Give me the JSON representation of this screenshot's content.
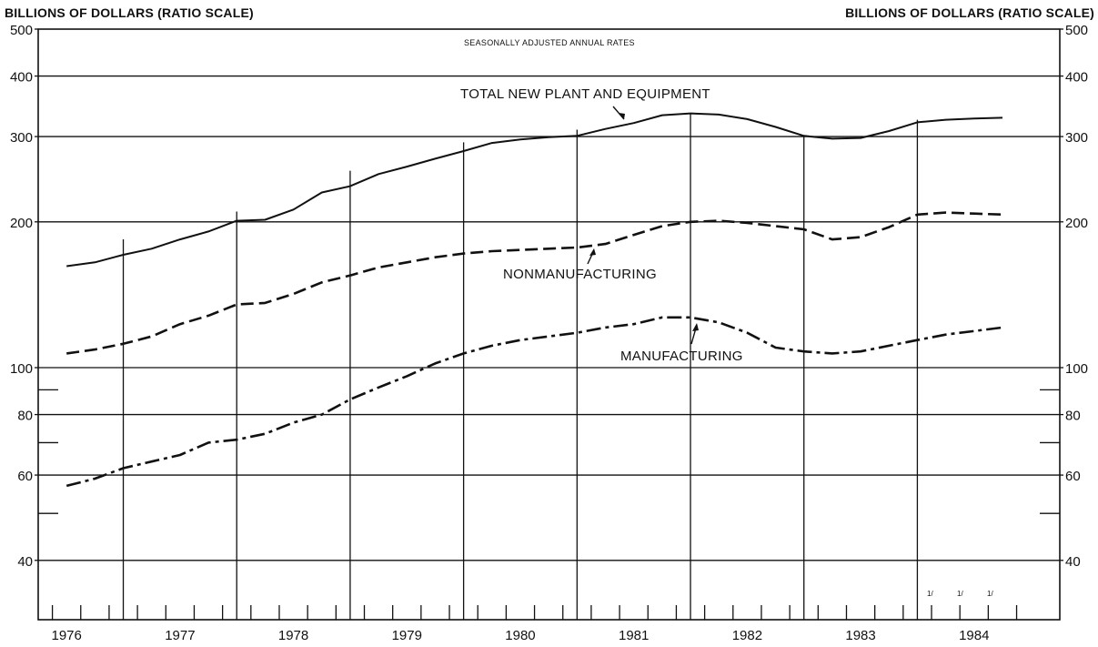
{
  "chart_data": {
    "type": "line",
    "yaxis_left_label": "BILLIONS OF DOLLARS (RATIO SCALE)",
    "yaxis_right_label": "BILLIONS OF DOLLARS (RATIO SCALE)",
    "annotation": "SEASONALLY ADJUSTED ANNUAL RATES",
    "y_scale": "log",
    "ylim": [
      30,
      500
    ],
    "xlim": [
      1975.75,
      1984.5
    ],
    "y_ticks": [
      40,
      60,
      80,
      100,
      200,
      300,
      400,
      500
    ],
    "y_minor_ticks": [
      50,
      70,
      90
    ],
    "x_ticks": [
      "1976",
      "1977",
      "1978",
      "1979",
      "1980",
      "1981",
      "1982",
      "1983",
      "1984"
    ],
    "footnote_marks": [
      "1/",
      "1/",
      "1/"
    ],
    "series": [
      {
        "name": "TOTAL NEW PLANT AND EQUIPMENT",
        "style": "solid",
        "x": [
          1976.0,
          1976.25,
          1976.5,
          1976.75,
          1977.0,
          1977.25,
          1977.5,
          1977.75,
          1978.0,
          1978.25,
          1978.5,
          1978.75,
          1979.0,
          1979.25,
          1979.5,
          1979.75,
          1980.0,
          1980.25,
          1980.5,
          1980.75,
          1981.0,
          1981.25,
          1981.5,
          1981.75,
          1982.0,
          1982.25,
          1982.5,
          1982.75,
          1983.0,
          1983.25,
          1983.5,
          1983.75,
          1984.0,
          1984.25
        ],
        "values": [
          162,
          165,
          171,
          176,
          184,
          191,
          201,
          202,
          212,
          230,
          237,
          251,
          260,
          270,
          280,
          291,
          296,
          299,
          301,
          311,
          320,
          332,
          335,
          333,
          326,
          314,
          301,
          297,
          298,
          308,
          321,
          325,
          327,
          328
        ]
      },
      {
        "name": "NONMANUFACTURING",
        "style": "dashed",
        "x": [
          1976.0,
          1976.25,
          1976.5,
          1976.75,
          1977.0,
          1977.25,
          1977.5,
          1977.75,
          1978.0,
          1978.25,
          1978.5,
          1978.75,
          1979.0,
          1979.25,
          1979.5,
          1979.75,
          1980.0,
          1980.25,
          1980.5,
          1980.75,
          1981.0,
          1981.25,
          1981.5,
          1981.75,
          1982.0,
          1982.25,
          1982.5,
          1982.75,
          1983.0,
          1983.25,
          1983.5,
          1983.75,
          1984.0,
          1984.25
        ],
        "values": [
          107,
          109,
          112,
          116,
          123,
          128,
          135,
          136,
          142,
          150,
          155,
          161,
          165,
          169,
          172,
          174,
          175,
          176,
          177,
          180,
          188,
          196,
          200,
          201,
          199,
          196,
          193,
          184,
          186,
          195,
          207,
          209,
          208,
          207
        ]
      },
      {
        "name": "MANUFACTURING",
        "style": "dash-dot",
        "x": [
          1976.0,
          1976.25,
          1976.5,
          1976.75,
          1977.0,
          1977.25,
          1977.5,
          1977.75,
          1978.0,
          1978.25,
          1978.5,
          1978.75,
          1979.0,
          1979.25,
          1979.5,
          1979.75,
          1980.0,
          1980.25,
          1980.5,
          1980.75,
          1981.0,
          1981.25,
          1981.5,
          1981.75,
          1982.0,
          1982.25,
          1982.5,
          1982.75,
          1983.0,
          1983.25,
          1983.5,
          1983.75,
          1984.0,
          1984.25
        ],
        "values": [
          57,
          59,
          62,
          64,
          66,
          70,
          71,
          73,
          77,
          80,
          86,
          91,
          96,
          102,
          107,
          111,
          114,
          116,
          118,
          121,
          123,
          127,
          127,
          124,
          118,
          110,
          108,
          107,
          108,
          111,
          114,
          117,
          119,
          121
        ]
      }
    ],
    "line_color": "#111111"
  }
}
